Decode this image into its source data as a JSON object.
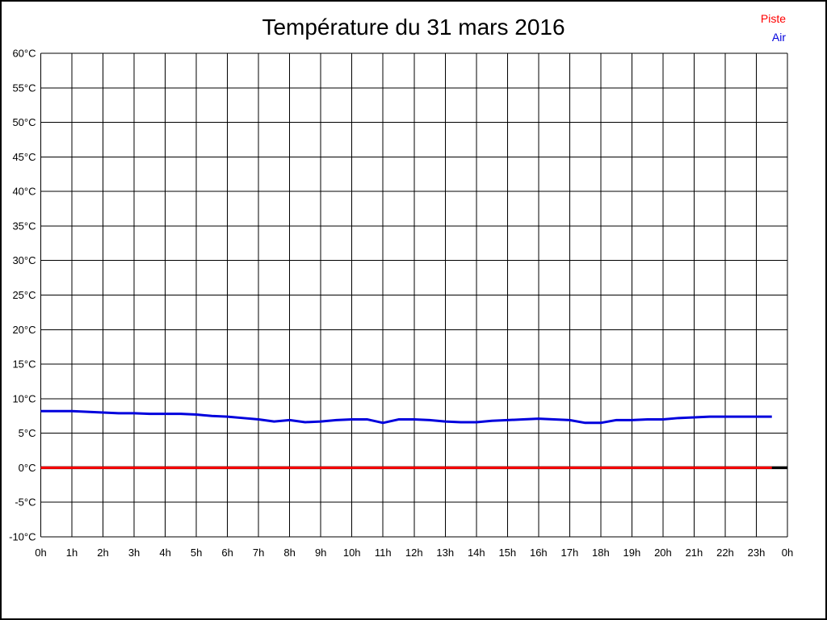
{
  "title": "Température du 31 mars 2016",
  "legend": [
    {
      "label": "Piste",
      "color": "#ff0000"
    },
    {
      "label": "Air",
      "color": "#0000dd"
    }
  ],
  "chart_data": {
    "type": "line",
    "title": "Température du 31 mars 2016",
    "grid": true,
    "legend_position": "top-right",
    "x_min": 0,
    "x_max": 24,
    "y_min": -10,
    "y_max": 60,
    "y_step": 5,
    "x_tick_positions": [
      0,
      1,
      2,
      3,
      4,
      5,
      6,
      7,
      8,
      9,
      10,
      11,
      12,
      13,
      14,
      15,
      16,
      17,
      18,
      19,
      20,
      21,
      22,
      23,
      24
    ],
    "x_tick_labels": [
      "0h",
      "1h",
      "2h",
      "3h",
      "4h",
      "5h",
      "6h",
      "7h",
      "8h",
      "9h",
      "10h",
      "11h",
      "12h",
      "13h",
      "14h",
      "15h",
      "16h",
      "17h",
      "18h",
      "19h",
      "20h",
      "21h",
      "22h",
      "23h",
      "0h"
    ],
    "y_tick_values": [
      60,
      55,
      50,
      45,
      40,
      35,
      30,
      25,
      20,
      15,
      10,
      5,
      0,
      -5,
      -10
    ],
    "y_tick_labels": [
      "60°C",
      "55°C",
      "50°C",
      "45°C",
      "40°C",
      "35°C",
      "30°C",
      "25°C",
      "20°C",
      "15°C",
      "10°C",
      "5°C",
      "0°C",
      "-5°C",
      "-10°C"
    ],
    "zero_axis": {
      "value": 0,
      "color": "#000000",
      "width": 3.5
    },
    "x_hours": [
      0,
      0.5,
      1,
      1.5,
      2,
      2.5,
      3,
      3.5,
      4,
      4.5,
      5,
      5.5,
      6,
      6.5,
      7,
      7.5,
      8,
      8.5,
      9,
      9.5,
      10,
      10.5,
      11,
      11.5,
      12,
      12.5,
      13,
      13.5,
      14,
      14.5,
      15,
      15.5,
      16,
      16.5,
      17,
      17.5,
      18,
      18.5,
      19,
      19.5,
      20,
      20.5,
      21,
      21.5,
      22,
      22.5,
      23,
      23.5
    ],
    "series": [
      {
        "name": "Piste",
        "color": "#ff0000",
        "values": [
          0,
          0,
          0,
          0,
          0,
          0,
          0,
          0,
          0,
          0,
          0,
          0,
          0,
          0,
          0,
          0,
          0,
          0,
          0,
          0,
          0,
          0,
          0,
          0,
          0,
          0,
          0,
          0,
          0,
          0,
          0,
          0,
          0,
          0,
          0,
          0,
          0,
          0,
          0,
          0,
          0,
          0,
          0,
          0,
          0,
          0,
          0,
          0
        ]
      },
      {
        "name": "Air",
        "color": "#0000dd",
        "values": [
          8.2,
          8.2,
          8.2,
          8.1,
          8.0,
          7.9,
          7.9,
          7.8,
          7.8,
          7.8,
          7.7,
          7.5,
          7.4,
          7.2,
          7.0,
          6.7,
          6.9,
          6.6,
          6.7,
          6.9,
          7.0,
          7.0,
          6.5,
          7.0,
          7.0,
          6.9,
          6.7,
          6.6,
          6.6,
          6.8,
          6.9,
          7.0,
          7.1,
          7.0,
          6.9,
          6.5,
          6.5,
          6.9,
          6.9,
          7.0,
          7.0,
          7.2,
          7.3,
          7.4,
          7.4,
          7.4,
          7.4,
          7.4
        ]
      }
    ]
  }
}
